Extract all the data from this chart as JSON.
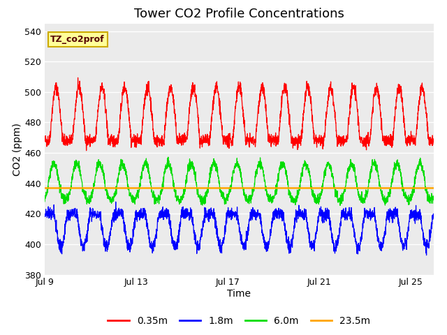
{
  "title": "Tower CO2 Profile Concentrations",
  "xlabel": "Time",
  "ylabel": "CO2 (ppm)",
  "ylim": [
    380,
    545
  ],
  "xlim_days": [
    0,
    17
  ],
  "yticks": [
    380,
    400,
    420,
    440,
    460,
    480,
    500,
    520,
    540
  ],
  "xtick_positions": [
    0,
    4,
    8,
    12,
    16
  ],
  "xtick_labels": [
    "Jul 9",
    "Jul 13",
    "Jul 17",
    "Jul 21",
    "Jul 25"
  ],
  "red_base": 468,
  "red_amplitude": 35,
  "blue_base": 420,
  "blue_amplitude": 22,
  "green_base": 437,
  "green_amplitude": 16,
  "orange_val": 437,
  "red_color": "#ff0000",
  "blue_color": "#0000ff",
  "green_color": "#00dd00",
  "orange_color": "#ffa500",
  "annotation_text": "TZ_co2prof",
  "annotation_facecolor": "#ffff99",
  "annotation_edgecolor": "#ccaa00",
  "bg_color": "#ebebeb",
  "fig_bg": "#ffffff",
  "grid_color": "#ffffff",
  "legend_labels": [
    "0.35m",
    "1.8m",
    "6.0m",
    "23.5m"
  ],
  "title_fontsize": 13,
  "label_fontsize": 10,
  "tick_fontsize": 9
}
